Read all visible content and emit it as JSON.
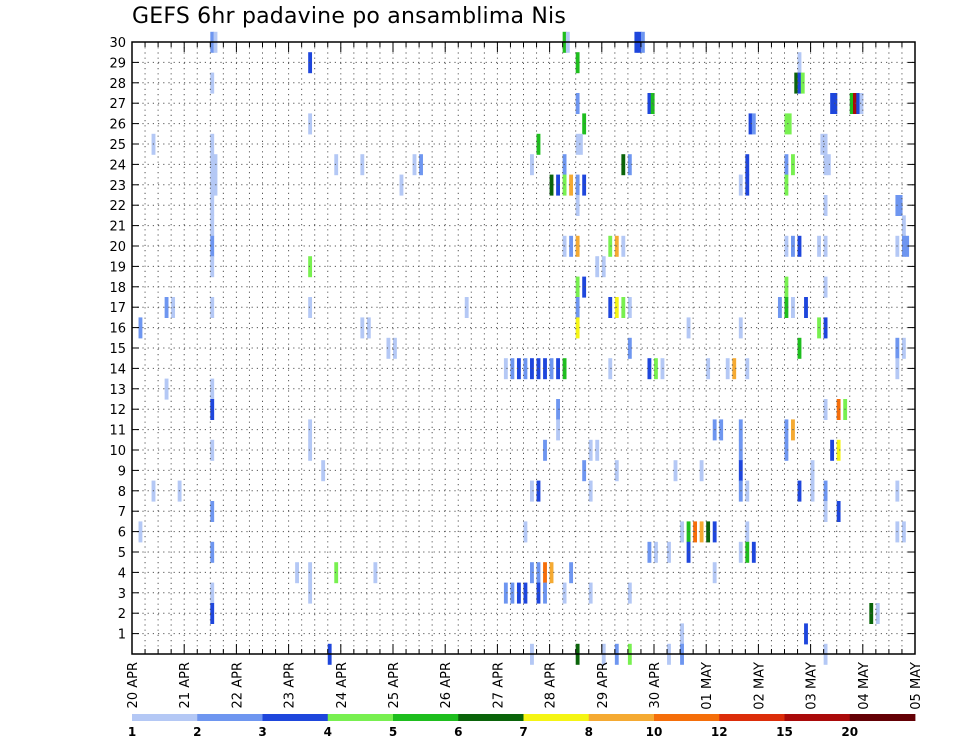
{
  "chart_data": {
    "type": "heatmap",
    "title": "GEFS 6hr padavine po ansamblima Nis",
    "xlabel": "",
    "ylabel": "",
    "x_ticks": [
      "20 APR",
      "21 APR",
      "22 APR",
      "23 APR",
      "24 APR",
      "25 APR",
      "26 APR",
      "27 APR",
      "28 APR",
      "29 APR",
      "30 APR",
      "01 MAY",
      "02 MAY",
      "03 MAY",
      "04 MAY",
      "05 MAY"
    ],
    "y_ticks": [
      "1",
      "2",
      "3",
      "4",
      "5",
      "6",
      "7",
      "8",
      "9",
      "10",
      "11",
      "12",
      "13",
      "14",
      "15",
      "16",
      "17",
      "18",
      "19",
      "20",
      "21",
      "22",
      "23",
      "24",
      "25",
      "26",
      "27",
      "28",
      "29",
      "30"
    ],
    "x_range": [
      0,
      60
    ],
    "y_range": [
      0,
      30
    ],
    "x_step": 0.25,
    "grid": true,
    "colorbar": {
      "thresholds": [
        "1",
        "2",
        "3",
        "4",
        "5",
        "6",
        "7",
        "8",
        "10",
        "12",
        "15",
        "20"
      ],
      "colors": [
        "#b4c8f5",
        "#6e96f0",
        "#1e46dc",
        "#78f050",
        "#1ebe1e",
        "#0a640a",
        "#f5f514",
        "#f5aa32",
        "#f56e0a",
        "#dc2d0a",
        "#aa0a0a",
        "#640005"
      ]
    },
    "cells": [
      [
        6.0,
        30,
        1
      ],
      [
        6.25,
        30,
        0
      ],
      [
        33.0,
        30,
        4
      ],
      [
        33.25,
        30,
        0
      ],
      [
        38.5,
        30,
        2
      ],
      [
        38.75,
        30,
        2
      ],
      [
        39.0,
        30,
        1
      ],
      [
        13.5,
        29,
        2
      ],
      [
        34.0,
        29,
        4
      ],
      [
        51.0,
        29,
        0
      ],
      [
        6.0,
        28,
        0
      ],
      [
        50.75,
        28,
        5
      ],
      [
        51.0,
        28,
        2
      ],
      [
        51.25,
        28,
        3
      ],
      [
        34.0,
        27,
        1
      ],
      [
        39.5,
        27,
        2
      ],
      [
        39.75,
        27,
        4
      ],
      [
        53.5,
        27,
        2
      ],
      [
        53.75,
        27,
        2
      ],
      [
        55.0,
        27,
        4
      ],
      [
        55.25,
        27,
        10
      ],
      [
        55.5,
        27,
        2
      ],
      [
        55.75,
        27,
        0
      ],
      [
        13.5,
        26,
        0
      ],
      [
        34.5,
        26,
        4
      ],
      [
        47.25,
        26,
        2
      ],
      [
        47.5,
        26,
        1
      ],
      [
        50.0,
        26,
        3
      ],
      [
        50.25,
        26,
        3
      ],
      [
        1.5,
        25,
        0
      ],
      [
        6.0,
        25,
        0
      ],
      [
        31.0,
        25,
        4
      ],
      [
        34.0,
        25,
        0
      ],
      [
        34.25,
        25,
        0
      ],
      [
        52.75,
        25,
        0
      ],
      [
        53.0,
        25,
        0
      ],
      [
        6.0,
        24,
        0
      ],
      [
        6.25,
        24,
        0
      ],
      [
        15.5,
        24,
        0
      ],
      [
        17.5,
        24,
        0
      ],
      [
        21.5,
        24,
        0
      ],
      [
        22.0,
        24,
        1
      ],
      [
        30.5,
        24,
        0
      ],
      [
        33.0,
        24,
        1
      ],
      [
        37.5,
        24,
        5
      ],
      [
        38.0,
        24,
        1
      ],
      [
        47.0,
        24,
        2
      ],
      [
        50.0,
        24,
        1
      ],
      [
        50.5,
        24,
        3
      ],
      [
        53.0,
        24,
        0
      ],
      [
        53.25,
        24,
        0
      ],
      [
        6.0,
        23,
        0
      ],
      [
        6.25,
        23,
        0
      ],
      [
        20.5,
        23,
        0
      ],
      [
        32.0,
        23,
        5
      ],
      [
        32.5,
        23,
        2
      ],
      [
        33.0,
        23,
        3
      ],
      [
        33.5,
        23,
        7
      ],
      [
        34.0,
        23,
        1
      ],
      [
        34.5,
        23,
        2
      ],
      [
        46.5,
        23,
        0
      ],
      [
        47.0,
        23,
        2
      ],
      [
        50.0,
        23,
        3
      ],
      [
        6.0,
        22,
        0
      ],
      [
        34.0,
        22,
        0
      ],
      [
        53.0,
        22,
        0
      ],
      [
        58.5,
        22,
        1
      ],
      [
        58.75,
        22,
        1
      ],
      [
        6.0,
        21,
        0
      ],
      [
        59.0,
        21,
        0
      ],
      [
        6.0,
        20,
        1
      ],
      [
        33.0,
        20,
        0
      ],
      [
        33.5,
        20,
        1
      ],
      [
        34.0,
        20,
        7
      ],
      [
        36.5,
        20,
        3
      ],
      [
        37.0,
        20,
        7
      ],
      [
        37.5,
        20,
        0
      ],
      [
        50.0,
        20,
        0
      ],
      [
        50.5,
        20,
        1
      ],
      [
        51.0,
        20,
        2
      ],
      [
        52.5,
        20,
        0
      ],
      [
        53.0,
        20,
        0
      ],
      [
        58.5,
        20,
        0
      ],
      [
        59.0,
        20,
        1
      ],
      [
        59.25,
        20,
        1
      ],
      [
        6.0,
        19,
        0
      ],
      [
        13.5,
        19,
        3
      ],
      [
        35.5,
        19,
        0
      ],
      [
        36.0,
        19,
        0
      ],
      [
        34.0,
        18,
        3
      ],
      [
        34.5,
        18,
        2
      ],
      [
        50.0,
        18,
        3
      ],
      [
        53.0,
        18,
        0
      ],
      [
        6.0,
        17,
        0
      ],
      [
        2.5,
        17,
        1
      ],
      [
        3.0,
        17,
        0
      ],
      [
        13.5,
        17,
        0
      ],
      [
        25.5,
        17,
        0
      ],
      [
        34.0,
        17,
        1
      ],
      [
        36.5,
        17,
        2
      ],
      [
        37.0,
        17,
        6
      ],
      [
        37.5,
        17,
        3
      ],
      [
        38.0,
        17,
        0
      ],
      [
        49.5,
        17,
        1
      ],
      [
        50.0,
        17,
        4
      ],
      [
        50.5,
        17,
        0
      ],
      [
        51.5,
        17,
        2
      ],
      [
        0.5,
        16,
        1
      ],
      [
        17.5,
        16,
        0
      ],
      [
        18.0,
        16,
        0
      ],
      [
        34.0,
        16,
        6
      ],
      [
        42.5,
        16,
        0
      ],
      [
        46.5,
        16,
        0
      ],
      [
        52.5,
        16,
        3
      ],
      [
        53.0,
        16,
        2
      ],
      [
        19.5,
        15,
        0
      ],
      [
        20.0,
        15,
        0
      ],
      [
        38.0,
        15,
        1
      ],
      [
        51.0,
        15,
        4
      ],
      [
        58.5,
        15,
        1
      ],
      [
        59.0,
        15,
        0
      ],
      [
        28.5,
        14,
        0
      ],
      [
        29.0,
        14,
        1
      ],
      [
        29.5,
        14,
        2
      ],
      [
        30.0,
        14,
        1
      ],
      [
        30.5,
        14,
        2
      ],
      [
        31.0,
        14,
        2
      ],
      [
        31.5,
        14,
        2
      ],
      [
        32.0,
        14,
        1
      ],
      [
        32.5,
        14,
        2
      ],
      [
        33.0,
        14,
        4
      ],
      [
        36.5,
        14,
        0
      ],
      [
        39.5,
        14,
        2
      ],
      [
        40.0,
        14,
        3
      ],
      [
        40.5,
        14,
        0
      ],
      [
        44.0,
        14,
        0
      ],
      [
        45.5,
        14,
        0
      ],
      [
        46.0,
        14,
        7
      ],
      [
        47.0,
        14,
        0
      ],
      [
        58.5,
        14,
        0
      ],
      [
        2.5,
        13,
        0
      ],
      [
        6.0,
        13,
        0
      ],
      [
        6.0,
        12,
        2
      ],
      [
        32.5,
        12,
        1
      ],
      [
        53.0,
        12,
        0
      ],
      [
        54.0,
        12,
        8
      ],
      [
        54.5,
        12,
        3
      ],
      [
        13.5,
        11,
        0
      ],
      [
        32.5,
        11,
        0
      ],
      [
        44.5,
        11,
        1
      ],
      [
        45.0,
        11,
        1
      ],
      [
        46.5,
        11,
        1
      ],
      [
        50.0,
        11,
        1
      ],
      [
        50.5,
        11,
        7
      ],
      [
        6.0,
        10,
        0
      ],
      [
        13.5,
        10,
        0
      ],
      [
        31.5,
        10,
        1
      ],
      [
        35.0,
        10,
        0
      ],
      [
        35.5,
        10,
        0
      ],
      [
        46.5,
        10,
        1
      ],
      [
        50.0,
        10,
        1
      ],
      [
        53.5,
        10,
        2
      ],
      [
        54.0,
        10,
        6
      ],
      [
        14.5,
        9,
        0
      ],
      [
        34.5,
        9,
        1
      ],
      [
        37.0,
        9,
        0
      ],
      [
        41.5,
        9,
        0
      ],
      [
        43.5,
        9,
        0
      ],
      [
        46.5,
        9,
        2
      ],
      [
        52.0,
        9,
        0
      ],
      [
        1.5,
        8,
        0
      ],
      [
        3.5,
        8,
        0
      ],
      [
        30.5,
        8,
        0
      ],
      [
        31.0,
        8,
        2
      ],
      [
        35.0,
        8,
        0
      ],
      [
        46.5,
        8,
        1
      ],
      [
        47.0,
        8,
        0
      ],
      [
        51.0,
        8,
        2
      ],
      [
        52.0,
        8,
        0
      ],
      [
        53.0,
        8,
        1
      ],
      [
        58.5,
        8,
        0
      ],
      [
        6.0,
        7,
        1
      ],
      [
        53.0,
        7,
        0
      ],
      [
        54.0,
        7,
        2
      ],
      [
        0.5,
        6,
        0
      ],
      [
        30.0,
        6,
        0
      ],
      [
        42.0,
        6,
        0
      ],
      [
        42.5,
        6,
        4
      ],
      [
        43.0,
        6,
        8
      ],
      [
        43.5,
        6,
        7
      ],
      [
        44.0,
        6,
        5
      ],
      [
        44.5,
        6,
        2
      ],
      [
        47.0,
        6,
        0
      ],
      [
        58.5,
        6,
        0
      ],
      [
        59.0,
        6,
        0
      ],
      [
        6.0,
        5,
        1
      ],
      [
        39.5,
        5,
        1
      ],
      [
        40.0,
        5,
        0
      ],
      [
        41.0,
        5,
        0
      ],
      [
        42.5,
        5,
        2
      ],
      [
        46.5,
        5,
        0
      ],
      [
        47.0,
        5,
        4
      ],
      [
        47.5,
        5,
        2
      ],
      [
        12.5,
        4,
        0
      ],
      [
        13.5,
        4,
        0
      ],
      [
        15.5,
        4,
        3
      ],
      [
        18.5,
        4,
        0
      ],
      [
        30.5,
        4,
        1
      ],
      [
        31.0,
        4,
        1
      ],
      [
        31.5,
        4,
        8
      ],
      [
        32.0,
        4,
        7
      ],
      [
        33.5,
        4,
        1
      ],
      [
        44.5,
        4,
        0
      ],
      [
        6.0,
        3,
        0
      ],
      [
        13.5,
        3,
        0
      ],
      [
        28.5,
        3,
        1
      ],
      [
        29.0,
        3,
        1
      ],
      [
        29.5,
        3,
        2
      ],
      [
        30.0,
        3,
        2
      ],
      [
        31.0,
        3,
        2
      ],
      [
        31.5,
        3,
        1
      ],
      [
        33.0,
        3,
        0
      ],
      [
        35.0,
        3,
        0
      ],
      [
        38.0,
        3,
        0
      ],
      [
        6.0,
        2,
        2
      ],
      [
        56.5,
        2,
        5
      ],
      [
        57.0,
        2,
        0
      ],
      [
        42.0,
        1,
        0
      ],
      [
        51.5,
        1,
        2
      ],
      [
        15.0,
        0,
        2
      ],
      [
        30.5,
        0,
        0
      ],
      [
        34.0,
        0,
        5
      ],
      [
        36.0,
        0,
        0
      ],
      [
        37.0,
        0,
        1
      ],
      [
        38.0,
        0,
        3
      ],
      [
        41.0,
        0,
        0
      ],
      [
        42.0,
        0,
        1
      ],
      [
        53.0,
        0,
        0
      ]
    ]
  }
}
